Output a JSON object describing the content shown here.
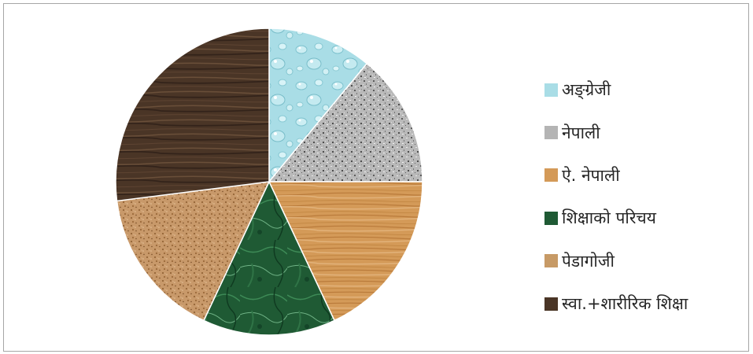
{
  "chart_data": {
    "type": "pie",
    "title": "",
    "legend_position": "right",
    "slices": [
      {
        "label": "अङ्ग्रेजी",
        "value": 11,
        "color": "#a9dde6",
        "pattern": "water-droplets"
      },
      {
        "label": "नेपाली",
        "value": 14,
        "color": "#b4b4b4",
        "pattern": "granite"
      },
      {
        "label": "ऐ. नेपाली",
        "value": 18,
        "color": "#d49a58",
        "pattern": "light-wood"
      },
      {
        "label": "शिक्षाको परिचय",
        "value": 14,
        "color": "#1f5a34",
        "pattern": "green-marble"
      },
      {
        "label": "पेडागोजी",
        "value": 16,
        "color": "#c79a66",
        "pattern": "cork"
      },
      {
        "label": "स्वा.+शारीरिक शिक्षा",
        "value": 27,
        "color": "#4a3526",
        "pattern": "dark-wood"
      }
    ]
  }
}
